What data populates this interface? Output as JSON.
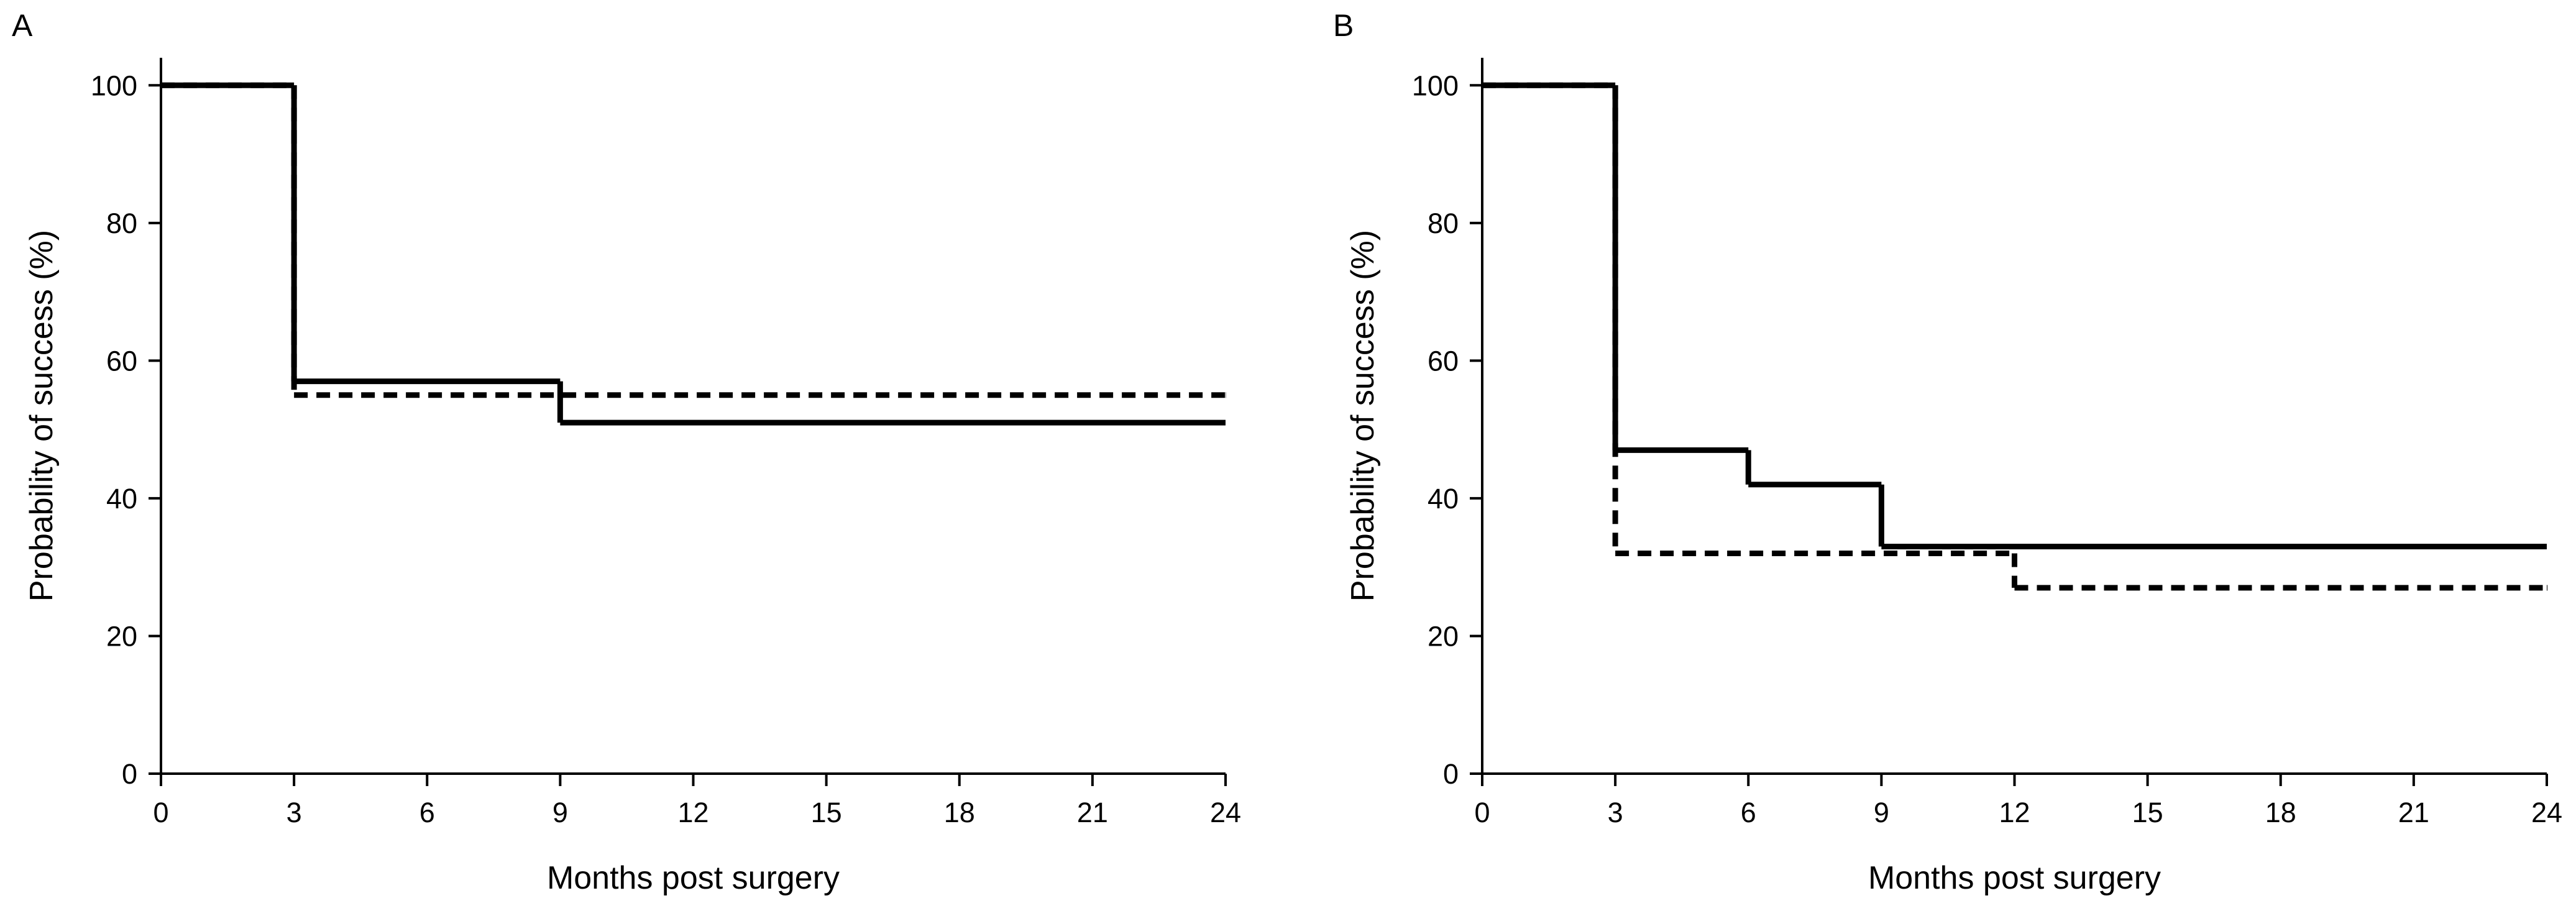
{
  "chart_data": [
    {
      "type": "step",
      "panel_label": "A",
      "xlabel": "Months post surgery",
      "ylabel": "Probability of success (%)",
      "xlim": [
        0,
        24
      ],
      "ylim": [
        0,
        104
      ],
      "xticks": [
        0,
        3,
        6,
        9,
        12,
        15,
        18,
        21,
        24
      ],
      "yticks": [
        0,
        20,
        40,
        60,
        80,
        100
      ],
      "series": [
        {
          "color": "#000000",
          "dash": true,
          "x": [
            0,
            3,
            24
          ],
          "values": [
            100,
            55,
            55
          ]
        },
        {
          "color": "#000000",
          "dash": false,
          "x": [
            0,
            3,
            9,
            24
          ],
          "values": [
            100,
            57,
            51,
            51
          ]
        }
      ]
    },
    {
      "type": "step",
      "panel_label": "B",
      "xlabel": "Months post surgery",
      "ylabel": "Probability of success (%)",
      "xlim": [
        0,
        24
      ],
      "ylim": [
        0,
        104
      ],
      "xticks": [
        0,
        3,
        6,
        9,
        12,
        15,
        18,
        21,
        24
      ],
      "yticks": [
        0,
        20,
        40,
        60,
        80,
        100
      ],
      "series": [
        {
          "color": "#000000",
          "dash": true,
          "x": [
            0,
            3,
            12,
            24
          ],
          "values": [
            100,
            32,
            27,
            27
          ]
        },
        {
          "color": "#000000",
          "dash": false,
          "x": [
            0,
            3,
            6,
            9,
            24
          ],
          "values": [
            100,
            47,
            42,
            33,
            33
          ]
        }
      ]
    }
  ]
}
